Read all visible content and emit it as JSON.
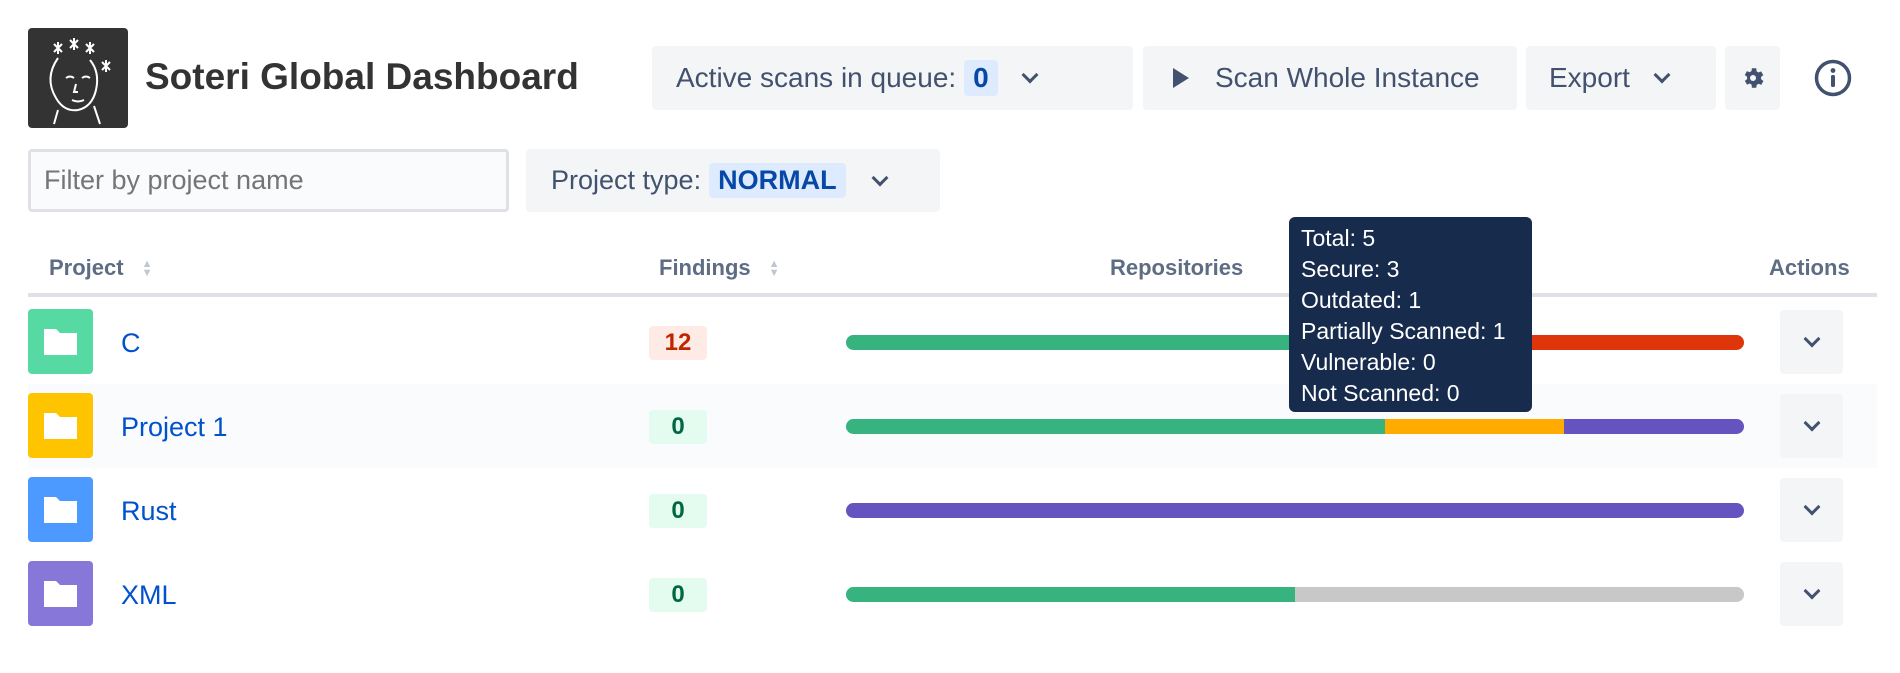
{
  "header": {
    "title": "Soteri Global Dashboard",
    "active_scans_label": "Active scans in queue:",
    "active_scans_count": "0",
    "scan_button": "Scan Whole Instance",
    "export_button": "Export"
  },
  "filters": {
    "filter_placeholder": "Filter by project name",
    "project_type_label": "Project type:",
    "project_type_value": "NORMAL"
  },
  "table": {
    "columns": [
      "Project",
      "Findings",
      "Repositories",
      "Actions"
    ],
    "rows": [
      {
        "name": "C",
        "findings": "12",
        "findings_status": "danger",
        "folder_color": "#57d9a3",
        "repos": {
          "secure": 1,
          "outdated": 0,
          "partially_scanned": 0,
          "vulnerable": 1,
          "not_scanned": 0
        }
      },
      {
        "name": "Project 1",
        "findings": "0",
        "findings_status": "ok",
        "folder_color": "#ffc400",
        "repos": {
          "secure": 3,
          "outdated": 1,
          "partially_scanned": 1,
          "vulnerable": 0,
          "not_scanned": 0
        }
      },
      {
        "name": "Rust",
        "findings": "0",
        "findings_status": "ok",
        "folder_color": "#4c9aff",
        "repos": {
          "secure": 0,
          "outdated": 0,
          "partially_scanned": 1,
          "vulnerable": 0,
          "not_scanned": 0
        }
      },
      {
        "name": "XML",
        "findings": "0",
        "findings_status": "ok",
        "folder_color": "#8777d9",
        "repos": {
          "secure": 1,
          "outdated": 0,
          "partially_scanned": 0,
          "vulnerable": 0,
          "not_scanned": 1
        }
      }
    ]
  },
  "tooltip": {
    "lines": [
      "Total: 5",
      "Secure: 3",
      "Outdated: 1",
      "Partially Scanned: 1",
      "Vulnerable: 0",
      "Not Scanned: 0"
    ]
  },
  "colors": {
    "secure": "#36b37e",
    "outdated": "#ffab00",
    "partially_scanned": "#6554c0",
    "vulnerable": "#de350b",
    "not_scanned": "#c8c8c8"
  }
}
